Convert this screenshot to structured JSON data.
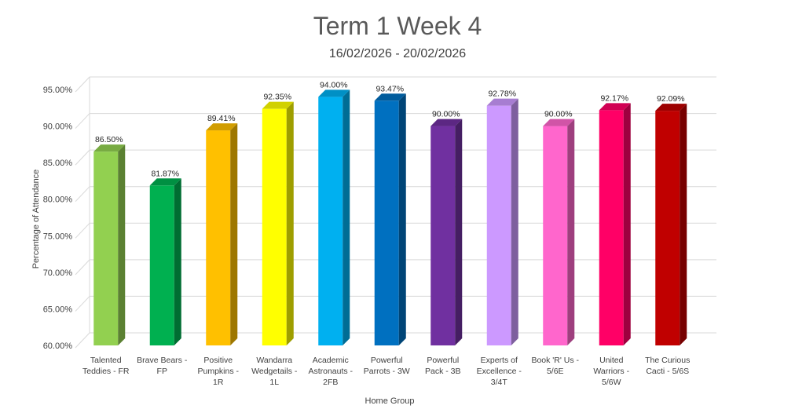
{
  "chart_data": {
    "type": "bar",
    "title": "Term 1 Week 4",
    "subtitle": "16/02/2026 - 20/02/2026",
    "xlabel": "Home Group",
    "ylabel": "Percentage of Attendance",
    "ylim": [
      60,
      95
    ],
    "yticks": [
      "60.00%",
      "65.00%",
      "70.00%",
      "75.00%",
      "80.00%",
      "85.00%",
      "90.00%",
      "95.00%"
    ],
    "categories": [
      [
        "Talented",
        "Teddies - FR"
      ],
      [
        "Brave Bears -",
        "FP"
      ],
      [
        "Positive",
        "Pumpkins -",
        "1R"
      ],
      [
        "Wandarra",
        "Wedgetails -",
        "1L"
      ],
      [
        "Academic",
        "Astronauts -",
        "2FB"
      ],
      [
        "Powerful",
        "Parrots - 3W"
      ],
      [
        "Powerful",
        "Pack - 3B"
      ],
      [
        "Experts of",
        "Excellence -",
        "3/4T"
      ],
      [
        "Book 'R' Us -",
        "5/6E"
      ],
      [
        "United",
        "Warriors -",
        "5/6W"
      ],
      [
        "The Curious",
        "Cacti - 5/6S"
      ]
    ],
    "values": [
      86.5,
      81.87,
      89.41,
      92.35,
      94.0,
      93.47,
      90.0,
      92.78,
      90.0,
      92.17,
      92.09
    ],
    "data_labels": [
      "86.50%",
      "81.87%",
      "89.41%",
      "92.35%",
      "94.00%",
      "93.47%",
      "90.00%",
      "92.78%",
      "90.00%",
      "92.17%",
      "92.09%"
    ],
    "colors": [
      "#92D050",
      "#00B050",
      "#FFC000",
      "#FFFF00",
      "#00B0F0",
      "#0070C0",
      "#7030A0",
      "#CC99FF",
      "#FF66CC",
      "#FF0066",
      "#C00000"
    ],
    "grid": true,
    "legend": "none"
  }
}
